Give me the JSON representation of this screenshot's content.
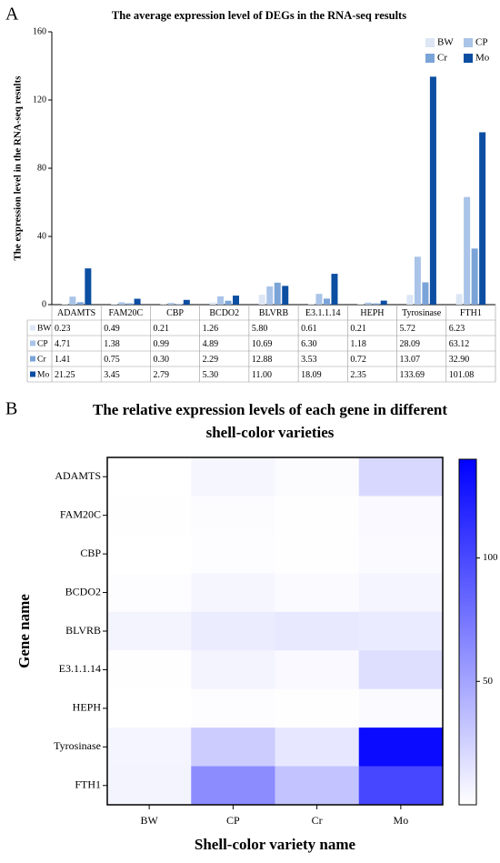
{
  "chart_data": [
    {
      "type": "bar",
      "panel_label": "A",
      "title": "The average expression level of DEGs in the RNA-seq results",
      "ylabel": "The expression level in the RNA-seq results",
      "categories": [
        "ADAMTS",
        "FAM20C",
        "CBP",
        "BCDO2",
        "BLVRB",
        "E3.1.1.14",
        "HEPH",
        "Tyrosinase",
        "FTH1"
      ],
      "series": [
        {
          "name": "BW",
          "color": "#dce6f5",
          "values": [
            0.23,
            0.49,
            0.21,
            1.26,
            5.8,
            0.61,
            0.21,
            5.72,
            6.23
          ],
          "value_labels": [
            "0.23",
            "0.49",
            "0.21",
            "1.26",
            "5.80",
            "0.61",
            "0.21",
            "5.72",
            "6.23"
          ]
        },
        {
          "name": "CP",
          "color": "#a9c4e8",
          "values": [
            4.71,
            1.38,
            0.99,
            4.89,
            10.69,
            6.3,
            1.18,
            28.09,
            63.12
          ],
          "value_labels": [
            "4.71",
            "1.38",
            "0.99",
            "4.89",
            "10.69",
            "6.30",
            "1.18",
            "28.09",
            "63.12"
          ]
        },
        {
          "name": "Cr",
          "color": "#7aa4d8",
          "values": [
            1.41,
            0.75,
            0.3,
            2.29,
            12.88,
            3.53,
            0.72,
            13.07,
            32.9
          ],
          "value_labels": [
            "1.41",
            "0.75",
            "0.30",
            "2.29",
            "12.88",
            "3.53",
            "0.72",
            "13.07",
            "32.90"
          ]
        },
        {
          "name": "Mo",
          "color": "#0b4ea2",
          "values": [
            21.25,
            3.45,
            2.79,
            5.3,
            11.0,
            18.09,
            2.35,
            133.69,
            101.08
          ],
          "value_labels": [
            "21.25",
            "3.45",
            "2.79",
            "5.30",
            "11.00",
            "18.09",
            "2.35",
            "133.69",
            "101.08"
          ]
        }
      ],
      "ylim": [
        0,
        160
      ],
      "yticks": [
        0,
        40,
        80,
        120,
        160
      ],
      "legend": "upper right"
    },
    {
      "type": "heatmap",
      "panel_label": "B",
      "title": [
        "The relative expression levels of each gene in different",
        "shell-color varieties"
      ],
      "xlabel": "Shell-color variety name",
      "ylabel": "Gene name",
      "x": [
        "BW",
        "CP",
        "Cr",
        "Mo"
      ],
      "y": [
        "ADAMTS",
        "FAM20C",
        "CBP",
        "BCDO2",
        "BLVRB",
        "E3.1.1.14",
        "HEPH",
        "Tyrosinase",
        "FTH1"
      ],
      "z": [
        [
          0.23,
          4.71,
          1.41,
          21.25
        ],
        [
          0.49,
          1.38,
          0.75,
          3.45
        ],
        [
          0.21,
          0.99,
          0.3,
          2.79
        ],
        [
          1.26,
          4.89,
          2.29,
          5.3
        ],
        [
          5.8,
          10.69,
          12.88,
          11.0
        ],
        [
          0.61,
          6.3,
          3.53,
          18.09
        ],
        [
          0.21,
          1.18,
          0.72,
          2.35
        ],
        [
          5.72,
          28.09,
          13.07,
          133.69
        ],
        [
          6.23,
          63.12,
          32.9,
          101.08
        ]
      ],
      "zlim": [
        0,
        140
      ],
      "zticks": [
        50,
        100
      ],
      "colormap": [
        "#ffffff",
        "#0000ff"
      ]
    }
  ]
}
